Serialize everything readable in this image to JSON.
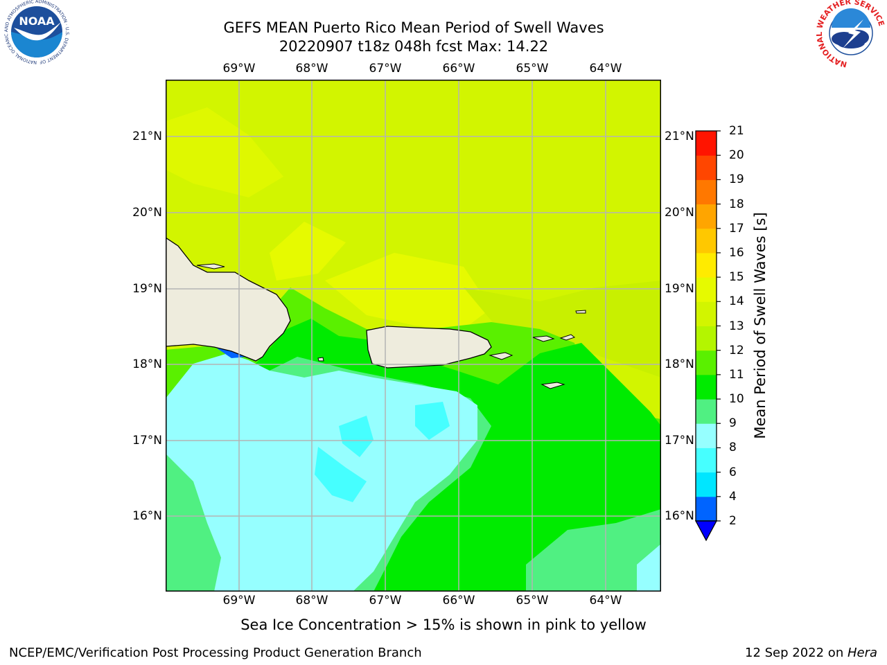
{
  "title": {
    "line1": "GEFS MEAN Puerto Rico Mean Period of Swell Waves",
    "line2": "20220907 t18z 048h fcst   Max: 14.22"
  },
  "map": {
    "longitude_labels": [
      "69°W",
      "68°W",
      "67°W",
      "66°W",
      "65°W",
      "64°W"
    ],
    "latitude_labels": [
      "21°N",
      "20°N",
      "19°N",
      "18°N",
      "17°N",
      "16°N"
    ],
    "land_color": "#eeecdd",
    "grid_color": "#b4b4b4"
  },
  "colorbar": {
    "title": "Mean Period of Swell Waves [s]",
    "levels": [
      "2",
      "4",
      "6",
      "8",
      "9",
      "10",
      "11",
      "12",
      "13",
      "14",
      "15",
      "16",
      "17",
      "18",
      "19",
      "20",
      "21"
    ],
    "colors": [
      "#0064ff",
      "#00e6ff",
      "#46ffff",
      "#96ffff",
      "#50f082",
      "#00eb00",
      "#5af000",
      "#b4f500",
      "#d2f500",
      "#e6fa00",
      "#ffeb00",
      "#ffc800",
      "#ffa500",
      "#ff7800",
      "#ff4600",
      "#ff1400"
    ],
    "under_color": "#0000ff"
  },
  "sea_ice_note": "Sea Ice Concentration > 15% is shown in pink to yellow",
  "footer": {
    "left": "NCEP/EMC/Verification Post Processing Product Generation Branch",
    "date": "12 Sep 2022 on ",
    "machine": "Hera"
  },
  "logos": {
    "noaa": "NOAA",
    "noaa_ring": "NATIONAL OCEANIC AND ATMOSPHERIC ADMINISTRATION · U.S. DEPARTMENT OF COMMERCE ·",
    "nws_ring": "NATIONAL WEATHER SERVICE"
  }
}
